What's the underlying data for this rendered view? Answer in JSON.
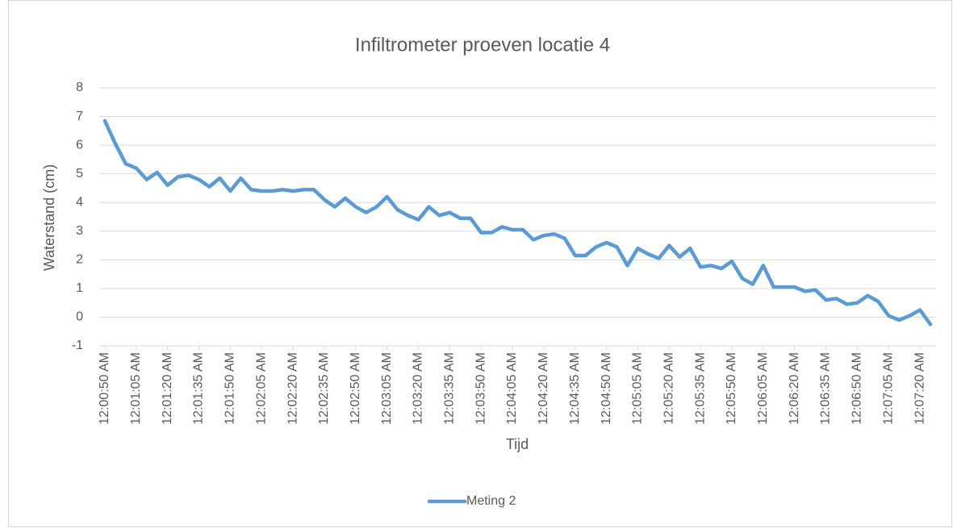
{
  "chart_data": {
    "type": "line",
    "title": "Infiltrometer proeven locatie 4",
    "x_label": "Tijd",
    "y_label": "Waterstand (cm)",
    "categories": [
      "12:00:50 AM",
      null,
      null,
      "12:01:05 AM",
      null,
      null,
      "12:01:20 AM",
      null,
      null,
      "12:01:35 AM",
      null,
      null,
      "12:01:50 AM",
      null,
      null,
      "12:02:05 AM",
      null,
      null,
      "12:02:20 AM",
      null,
      null,
      "12:02:35 AM",
      null,
      null,
      "12:02:50 AM",
      null,
      null,
      "12:03:05 AM",
      null,
      null,
      "12:03:20 AM",
      null,
      null,
      "12:03:35 AM",
      null,
      null,
      "12:03:50 AM",
      null,
      null,
      "12:04:05 AM",
      null,
      null,
      "12:04:20 AM",
      null,
      null,
      "12:04:35 AM",
      null,
      null,
      "12:04:50 AM",
      null,
      null,
      "12:05:05 AM",
      null,
      null,
      "12:05:20 AM",
      null,
      null,
      "12:05:35 AM",
      null,
      null,
      "12:05:50 AM",
      null,
      null,
      "12:06:05 AM",
      null,
      null,
      "12:06:20 AM",
      null,
      null,
      "12:06:35 AM",
      null,
      null,
      "12:06:50 AM",
      null,
      null,
      "12:07:05 AM",
      null,
      null,
      "12:07:20 AM",
      null
    ],
    "series": [
      {
        "name": "Meting 2",
        "color": "#5b9bd5",
        "values": [
          6.85,
          6.05,
          5.35,
          5.2,
          4.8,
          5.05,
          4.6,
          4.9,
          4.95,
          4.8,
          4.55,
          4.85,
          4.4,
          4.85,
          4.45,
          4.4,
          4.4,
          4.45,
          4.4,
          4.45,
          4.45,
          4.1,
          3.85,
          4.15,
          3.85,
          3.65,
          3.85,
          4.2,
          3.75,
          3.55,
          3.4,
          3.85,
          3.55,
          3.65,
          3.45,
          3.45,
          2.95,
          2.95,
          3.15,
          3.05,
          3.05,
          2.7,
          2.85,
          2.9,
          2.75,
          2.15,
          2.15,
          2.45,
          2.6,
          2.45,
          1.8,
          2.4,
          2.2,
          2.05,
          2.5,
          2.1,
          2.4,
          1.75,
          1.8,
          1.7,
          1.95,
          1.35,
          1.15,
          1.8,
          1.05,
          1.05,
          1.05,
          0.9,
          0.95,
          0.6,
          0.65,
          0.45,
          0.5,
          0.75,
          0.55,
          0.05,
          -0.1,
          0.05,
          0.25,
          -0.25
        ]
      }
    ],
    "ylim": [
      -1,
      8
    ],
    "yticks": [
      -1,
      0,
      1,
      2,
      3,
      4,
      5,
      6,
      7,
      8
    ],
    "grid": true,
    "legend": "bottom"
  }
}
